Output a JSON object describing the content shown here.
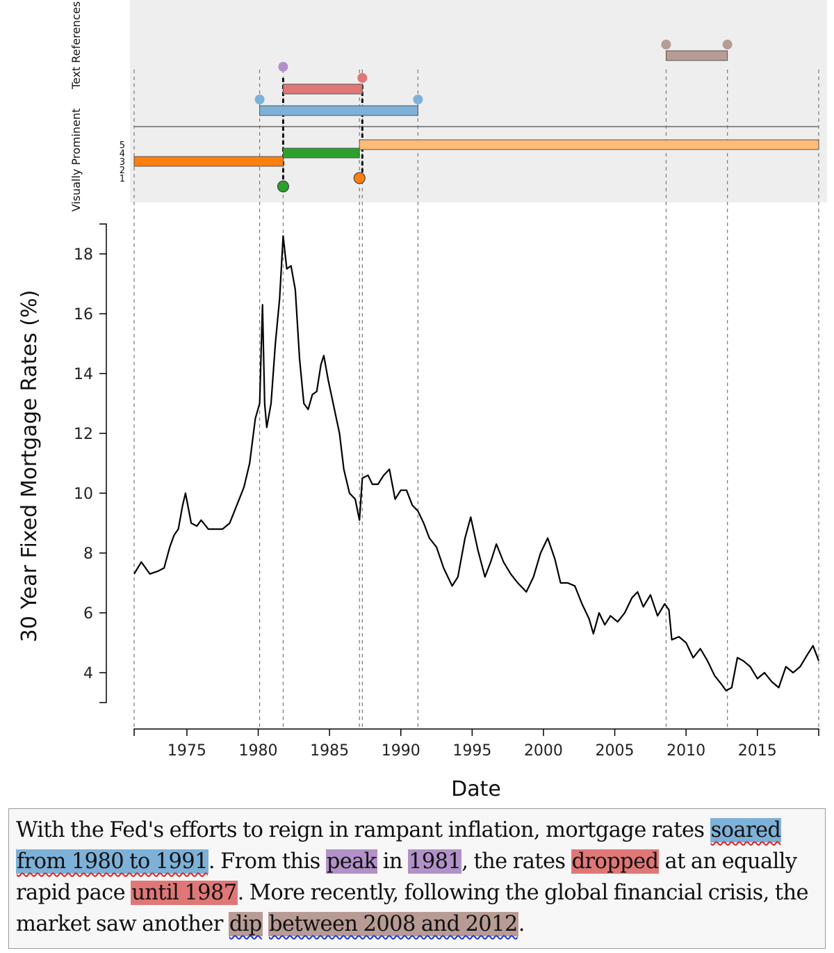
{
  "chart_data": {
    "type": "line",
    "ylabel": "30 Year Fixed Mortgage Rates (%)",
    "xlabel": "Date",
    "xlim": [
      1971.3,
      2019.3
    ],
    "ylim": [
      3.0,
      19.0
    ],
    "x_ticks": [
      1975,
      1980,
      1985,
      1990,
      1995,
      2000,
      2005,
      2010,
      2015
    ],
    "x_tick_labels": [
      "1975",
      "1980",
      "1985",
      "1990",
      "1995",
      "2000",
      "2005",
      "2010",
      "2015"
    ],
    "y_ticks": [
      4,
      6,
      8,
      10,
      12,
      14,
      16,
      18
    ],
    "y_tick_labels": [
      "4",
      "6",
      "8",
      "10",
      "12",
      "14",
      "16",
      "18"
    ],
    "series": [
      {
        "name": "30 Year Fixed Mortgage Rates",
        "color": "#000000",
        "points": [
          [
            1971.3,
            7.3
          ],
          [
            1971.8,
            7.7
          ],
          [
            1972.4,
            7.3
          ],
          [
            1973.0,
            7.4
          ],
          [
            1973.4,
            7.5
          ],
          [
            1973.8,
            8.2
          ],
          [
            1974.1,
            8.6
          ],
          [
            1974.4,
            8.8
          ],
          [
            1974.7,
            9.6
          ],
          [
            1974.9,
            10.0
          ],
          [
            1975.3,
            9.0
          ],
          [
            1975.7,
            8.9
          ],
          [
            1976.0,
            9.1
          ],
          [
            1976.5,
            8.8
          ],
          [
            1977.0,
            8.8
          ],
          [
            1977.5,
            8.8
          ],
          [
            1978.0,
            9.0
          ],
          [
            1978.5,
            9.6
          ],
          [
            1979.0,
            10.2
          ],
          [
            1979.4,
            11.0
          ],
          [
            1979.8,
            12.5
          ],
          [
            1980.1,
            13.0
          ],
          [
            1980.3,
            16.3
          ],
          [
            1980.45,
            13.0
          ],
          [
            1980.6,
            12.2
          ],
          [
            1980.9,
            13.0
          ],
          [
            1981.2,
            15.0
          ],
          [
            1981.5,
            16.5
          ],
          [
            1981.75,
            18.6
          ],
          [
            1982.0,
            17.5
          ],
          [
            1982.3,
            17.6
          ],
          [
            1982.6,
            16.8
          ],
          [
            1982.9,
            14.5
          ],
          [
            1983.2,
            13.0
          ],
          [
            1983.5,
            12.8
          ],
          [
            1983.8,
            13.3
          ],
          [
            1984.1,
            13.4
          ],
          [
            1984.4,
            14.3
          ],
          [
            1984.6,
            14.6
          ],
          [
            1984.9,
            13.8
          ],
          [
            1985.3,
            12.9
          ],
          [
            1985.7,
            12.0
          ],
          [
            1986.0,
            10.8
          ],
          [
            1986.4,
            10.0
          ],
          [
            1986.8,
            9.8
          ],
          [
            1987.1,
            9.1
          ],
          [
            1987.3,
            10.5
          ],
          [
            1987.7,
            10.6
          ],
          [
            1988.0,
            10.3
          ],
          [
            1988.4,
            10.3
          ],
          [
            1988.8,
            10.6
          ],
          [
            1989.2,
            10.8
          ],
          [
            1989.6,
            9.8
          ],
          [
            1990.0,
            10.1
          ],
          [
            1990.4,
            10.1
          ],
          [
            1990.8,
            9.6
          ],
          [
            1991.2,
            9.4
          ],
          [
            1991.6,
            9.0
          ],
          [
            1992.0,
            8.5
          ],
          [
            1992.5,
            8.2
          ],
          [
            1993.0,
            7.5
          ],
          [
            1993.6,
            6.9
          ],
          [
            1994.0,
            7.2
          ],
          [
            1994.5,
            8.5
          ],
          [
            1994.9,
            9.2
          ],
          [
            1995.4,
            8.1
          ],
          [
            1995.9,
            7.2
          ],
          [
            1996.3,
            7.7
          ],
          [
            1996.7,
            8.3
          ],
          [
            1997.2,
            7.7
          ],
          [
            1997.7,
            7.3
          ],
          [
            1998.2,
            7.0
          ],
          [
            1998.8,
            6.7
          ],
          [
            1999.3,
            7.2
          ],
          [
            1999.8,
            8.0
          ],
          [
            2000.3,
            8.5
          ],
          [
            2000.8,
            7.8
          ],
          [
            2001.2,
            7.0
          ],
          [
            2001.7,
            7.0
          ],
          [
            2002.2,
            6.9
          ],
          [
            2002.7,
            6.3
          ],
          [
            2003.2,
            5.8
          ],
          [
            2003.5,
            5.3
          ],
          [
            2003.9,
            6.0
          ],
          [
            2004.3,
            5.6
          ],
          [
            2004.7,
            5.9
          ],
          [
            2005.2,
            5.7
          ],
          [
            2005.7,
            6.0
          ],
          [
            2006.2,
            6.5
          ],
          [
            2006.6,
            6.7
          ],
          [
            2007.0,
            6.2
          ],
          [
            2007.5,
            6.6
          ],
          [
            2008.0,
            5.9
          ],
          [
            2008.5,
            6.3
          ],
          [
            2008.8,
            6.1
          ],
          [
            2009.0,
            5.1
          ],
          [
            2009.5,
            5.2
          ],
          [
            2010.0,
            5.0
          ],
          [
            2010.5,
            4.5
          ],
          [
            2011.0,
            4.8
          ],
          [
            2011.5,
            4.4
          ],
          [
            2012.0,
            3.9
          ],
          [
            2012.5,
            3.6
          ],
          [
            2012.8,
            3.4
          ],
          [
            2013.2,
            3.5
          ],
          [
            2013.6,
            4.5
          ],
          [
            2014.0,
            4.4
          ],
          [
            2014.5,
            4.2
          ],
          [
            2015.0,
            3.8
          ],
          [
            2015.5,
            4.0
          ],
          [
            2016.0,
            3.7
          ],
          [
            2016.5,
            3.5
          ],
          [
            2017.0,
            4.2
          ],
          [
            2017.5,
            4.0
          ],
          [
            2018.0,
            4.2
          ],
          [
            2018.5,
            4.6
          ],
          [
            2018.9,
            4.9
          ],
          [
            2019.3,
            4.4
          ]
        ]
      }
    ],
    "annotation_tracks": {
      "text_references": {
        "label": "Text References",
        "intervals": [
          {
            "start": 1981.75,
            "end": 1981.75,
            "color": "#b291c8",
            "kind": "point"
          },
          {
            "start": 1981.75,
            "end": 1987.3,
            "color": "#e07777",
            "kind": "range"
          },
          {
            "start": 1980.1,
            "end": 1991.2,
            "color": "#7eb1d8",
            "kind": "range"
          },
          {
            "start": 2008.6,
            "end": 2012.9,
            "color": "#b79b94",
            "kind": "range"
          }
        ]
      },
      "visually_prominent": {
        "label": "Visually Prominent",
        "levels": [
          "5",
          "4",
          "3",
          "2",
          "1"
        ],
        "intervals": [
          {
            "start": 1971.3,
            "end": 1981.75,
            "level": 3,
            "color": "#ff7f0e"
          },
          {
            "start": 1981.75,
            "end": 1987.1,
            "level": 4,
            "color": "#2ca02c"
          },
          {
            "start": 1987.1,
            "end": 2019.3,
            "level": 5,
            "color": "#ffbb78"
          },
          {
            "start": 1981.75,
            "end": 1981.75,
            "level": 1,
            "color": "#2ca02c",
            "kind": "point"
          },
          {
            "start": 1987.1,
            "end": 1987.1,
            "level": 2,
            "color": "#ff7f0e",
            "kind": "point"
          }
        ]
      },
      "guide_lines": [
        1971.3,
        1980.1,
        1981.75,
        1987.1,
        1987.3,
        1991.2,
        2008.6,
        2012.9,
        2019.3
      ]
    }
  },
  "caption": {
    "segments": [
      {
        "text": "With the Fed's efforts to reign in rampant inflation, mortgage rates ",
        "style": ""
      },
      {
        "text": "soared",
        "style": "hl hl-blue sq-red"
      },
      {
        "text": " ",
        "style": ""
      },
      {
        "text": "from 1980 to 1991",
        "style": "hl hl-blue sq-red"
      },
      {
        "text": ". From this ",
        "style": ""
      },
      {
        "text": "peak",
        "style": "hl hl-purple"
      },
      {
        "text": " in ",
        "style": ""
      },
      {
        "text": "1981",
        "style": "hl hl-purple"
      },
      {
        "text": ", the rates ",
        "style": ""
      },
      {
        "text": "dropped",
        "style": "hl hl-red"
      },
      {
        "text": " at an equally rapid pace ",
        "style": ""
      },
      {
        "text": "until 1987",
        "style": "hl hl-red"
      },
      {
        "text": ". More recently, following the global financial crisis, the market saw another ",
        "style": ""
      },
      {
        "text": "dip",
        "style": "hl hl-brown sq-blue"
      },
      {
        "text": " ",
        "style": ""
      },
      {
        "text": "between 2008 and 2012",
        "style": "hl hl-brown sq-blue"
      },
      {
        "text": ".",
        "style": ""
      }
    ]
  }
}
